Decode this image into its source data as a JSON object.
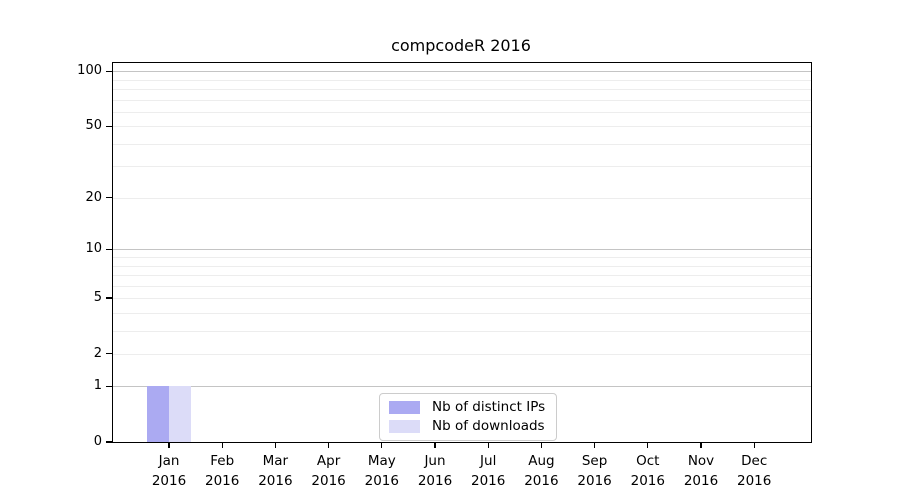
{
  "chart_data": {
    "type": "bar",
    "title": "compcodeR 2016",
    "x_categories": [
      "Jan",
      "Feb",
      "Mar",
      "Apr",
      "May",
      "Jun",
      "Jul",
      "Aug",
      "Sep",
      "Oct",
      "Nov",
      "Dec"
    ],
    "x_year": "2016",
    "series": [
      {
        "name": "Nb of distinct IPs",
        "color": "#abaaf2",
        "values": [
          1,
          0,
          0,
          0,
          0,
          0,
          0,
          0,
          0,
          0,
          0,
          0
        ]
      },
      {
        "name": "Nb of downloads",
        "color": "#dcdcf8",
        "values": [
          1,
          0,
          0,
          0,
          0,
          0,
          0,
          0,
          0,
          0,
          0,
          0
        ]
      }
    ],
    "y_scale": "log1p",
    "ylim": [
      0,
      100
    ],
    "y_ticks": [
      0,
      1,
      2,
      5,
      10,
      20,
      50,
      100
    ],
    "y_major_gridlines": [
      1,
      10,
      100
    ],
    "y_minor_gridlines": [
      2,
      3,
      4,
      5,
      6,
      7,
      8,
      9,
      20,
      30,
      40,
      50,
      60,
      70,
      80,
      90
    ],
    "grid": "on",
    "legend_position": "bottom-center-inside",
    "colors": {
      "major_grid": "#c4c4c4",
      "minor_grid": "#ededed",
      "spine": "#000000",
      "background": "#ffffff"
    }
  }
}
